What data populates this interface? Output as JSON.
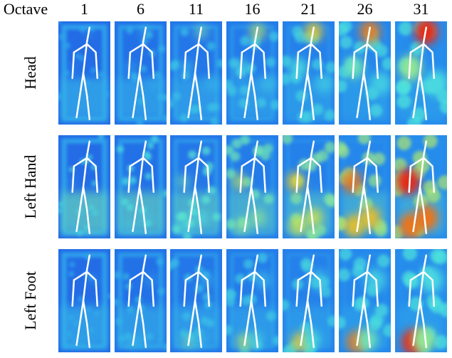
{
  "header": {
    "title": "Octave",
    "columns": [
      "1",
      "6",
      "11",
      "16",
      "21",
      "26",
      "31"
    ]
  },
  "rows": [
    "Head",
    "Left Hand",
    "Left Foot"
  ]
}
